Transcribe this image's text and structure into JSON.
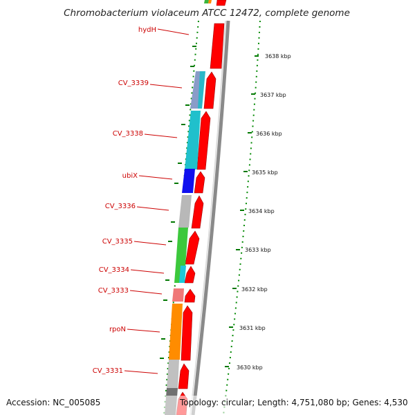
{
  "title": "Chromobacterium violaceum ATCC 12472, complete genome",
  "footer": {
    "accession": "Accession: NC_005085",
    "topology": "Topology: circular; Length: 4,751,080 bp; Genes: 4,530"
  },
  "genes": [
    {
      "name": "hydH",
      "label": "hydH"
    },
    {
      "name": "cv3339",
      "label": "CV_3339"
    },
    {
      "name": "cv3338",
      "label": "CV_3338"
    },
    {
      "name": "ubix",
      "label": "ubiX"
    },
    {
      "name": "cv3336",
      "label": "CV_3336"
    },
    {
      "name": "cv3335",
      "label": "CV_3335"
    },
    {
      "name": "cv3334",
      "label": "CV_3334"
    },
    {
      "name": "cv3333",
      "label": "CV_3333"
    },
    {
      "name": "rpon",
      "label": "rpoN"
    },
    {
      "name": "cv3331",
      "label": "CV_3331"
    }
  ],
  "kbp_ticks": [
    "3638 kbp",
    "3637 kbp",
    "3636 kbp",
    "3635 kbp",
    "3634 kbp",
    "3633 kbp",
    "3632 kbp",
    "3631 kbp",
    "3630 kbp"
  ],
  "colors": {
    "cds": "#ff0000",
    "cds_dark": "#b20000",
    "backbone": "#808080",
    "label_text": "#cc0000",
    "tick": "#007700"
  }
}
